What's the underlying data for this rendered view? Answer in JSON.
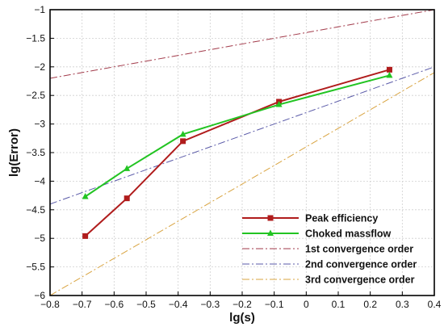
{
  "chart_data": {
    "type": "line",
    "xlabel": "lg(s)",
    "ylabel": "lg(Error)",
    "xlim": [
      -0.8,
      0.4
    ],
    "ylim": [
      -6,
      -1
    ],
    "xticks": [
      -0.8,
      -0.7,
      -0.6,
      -0.5,
      -0.4,
      -0.3,
      -0.2,
      -0.1,
      0,
      0.1,
      0.2,
      0.3,
      0.4
    ],
    "xtick_labels": [
      "−0.8",
      "−0.7",
      "−0.6",
      "−0.5",
      "−0.4",
      "−0.3",
      "−0.2",
      "−0.1",
      "0",
      "0.1",
      "0.2",
      "0.3",
      "0.4"
    ],
    "yticks": [
      -6,
      -5.5,
      -5,
      -4.5,
      -4,
      -3.5,
      -3,
      -2.5,
      -2,
      -1.5,
      -1
    ],
    "ytick_labels": [
      "−6",
      "−5.5",
      "−5",
      "−4.5",
      "−4",
      "−3.5",
      "−3",
      "−2.5",
      "−2",
      "−1.5",
      "−1"
    ],
    "grid": true,
    "legend_position": "bottom-right",
    "series": [
      {
        "name": "Peak efficiency",
        "color": "#b01c1c",
        "marker": "square",
        "dash": "solid",
        "x": [
          -0.69,
          -0.56,
          -0.385,
          -0.085,
          0.26
        ],
        "y": [
          -4.96,
          -4.3,
          -3.3,
          -2.61,
          -2.05
        ]
      },
      {
        "name": "Choked massflow",
        "color": "#22c422",
        "marker": "triangle",
        "dash": "solid",
        "x": [
          -0.69,
          -0.56,
          -0.385,
          -0.085,
          0.26
        ],
        "y": [
          -4.27,
          -3.78,
          -3.18,
          -2.66,
          -2.15
        ]
      },
      {
        "name": "1st convergence order",
        "color": "#a23a4a",
        "marker": "none",
        "dash": "dashdot",
        "x": [
          -0.8,
          0.4
        ],
        "y": [
          -2.2,
          -1.0
        ]
      },
      {
        "name": "2nd convergence order",
        "color": "#5a5aa8",
        "marker": "none",
        "dash": "dashdot",
        "x": [
          -0.8,
          0.4
        ],
        "y": [
          -4.4,
          -2.0
        ]
      },
      {
        "name": "3rd convergence order",
        "color": "#d9a441",
        "marker": "none",
        "dash": "dashdot",
        "x": [
          -0.8,
          0.4
        ],
        "y": [
          -6.0,
          -2.1
        ]
      }
    ]
  }
}
